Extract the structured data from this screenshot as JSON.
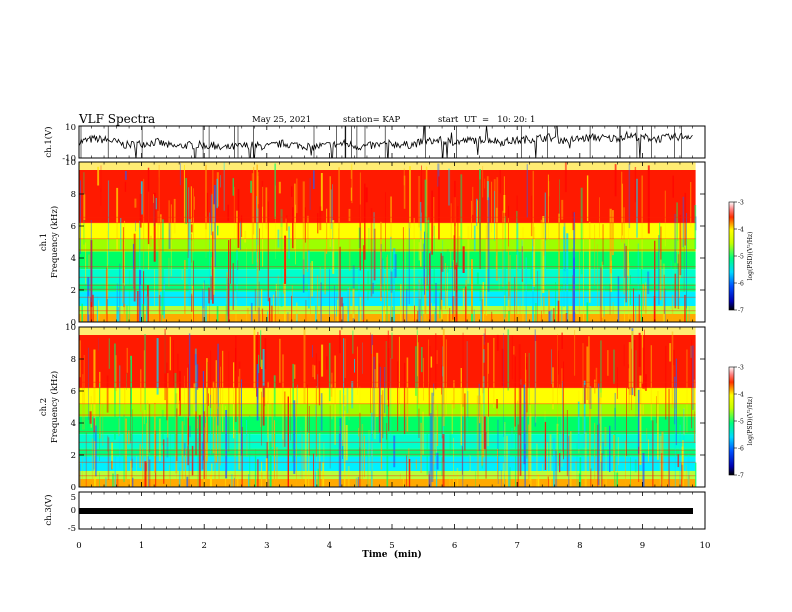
{
  "header": {
    "title": "VLF Spectra",
    "date": "May 25, 2021",
    "station": "station= KAP",
    "start": "start  UT  =   10: 20: 1"
  },
  "chart_data": [
    {
      "type": "line",
      "panel": "ch1-waveform",
      "ylabel": "ch.1(V)",
      "ylim": [
        -10,
        10
      ],
      "yticks": [
        "10",
        "-10"
      ],
      "x": [
        0,
        0.25,
        0.5,
        0.75,
        1,
        1.25,
        1.5,
        1.75,
        2,
        2.25,
        2.5,
        2.75,
        3,
        3.25,
        3.5,
        3.75,
        4,
        4.25,
        4.5,
        4.75,
        5,
        5.25,
        5.5,
        5.75,
        6,
        6.25,
        6.5,
        6.75,
        7,
        7.25,
        7.5,
        7.75,
        8,
        8.25,
        8.5,
        8.75,
        9,
        9.25,
        9.5,
        9.75
      ],
      "y": [
        0,
        2,
        1,
        -2,
        -1,
        0,
        -3,
        -2,
        -2,
        -4,
        -3,
        -2,
        -3,
        -1,
        -2,
        -3,
        -2,
        -1,
        -3,
        -2,
        -1,
        -2,
        0,
        1,
        0,
        1,
        2,
        0,
        1,
        2,
        3,
        1,
        2,
        3,
        2,
        4,
        3,
        2,
        3,
        4
      ]
    },
    {
      "type": "heatmap",
      "panel": "ch1-spectrogram",
      "ylabel": "ch.1\nFrequency  (kHz)",
      "ylim": [
        0,
        10
      ],
      "yticks": [
        "0",
        "2",
        "4",
        "6",
        "8",
        "10"
      ],
      "colorbar": {
        "label": "log(PSD)(V²/Hz)",
        "range": [
          -7,
          -3
        ],
        "ticks": [
          "-3",
          "-4",
          "-5",
          "-6",
          "-7"
        ]
      }
    },
    {
      "type": "heatmap",
      "panel": "ch2-spectrogram",
      "ylabel": "ch.2\nFrequency  (kHz)",
      "ylim": [
        0,
        10
      ],
      "yticks": [
        "0",
        "2",
        "4",
        "6",
        "8",
        "10"
      ],
      "colorbar": {
        "label": "log(PSD)(V²/Hz)",
        "range": [
          -7,
          -3
        ],
        "ticks": [
          "-3",
          "-4",
          "-5",
          "-6",
          "-7"
        ]
      }
    },
    {
      "type": "line",
      "panel": "ch3-waveform",
      "ylabel": "ch.3(V)",
      "ylim": [
        -5,
        5
      ],
      "yticks": [
        "5",
        "0",
        "-5"
      ],
      "x": [
        0,
        9.8
      ],
      "y": [
        0,
        0
      ]
    }
  ],
  "xaxis": {
    "label": "Time  (min)",
    "range": [
      0,
      10
    ],
    "ticks": [
      "0",
      "1",
      "2",
      "3",
      "4",
      "5",
      "6",
      "7",
      "8",
      "9",
      "10"
    ]
  }
}
